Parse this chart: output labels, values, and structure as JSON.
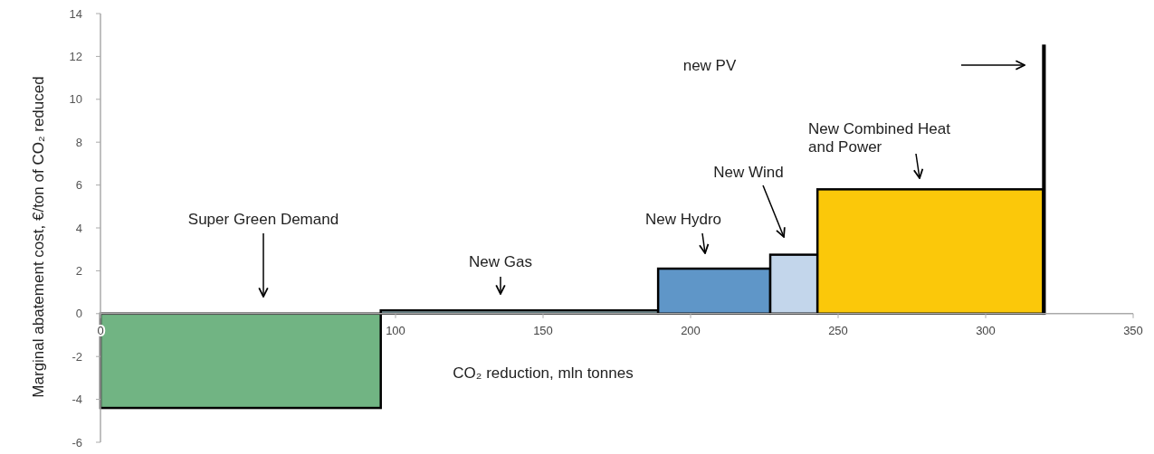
{
  "chart_data": {
    "type": "histogram",
    "xlabel": "CO₂ reduction, mln tonnes",
    "ylabel": "Marginal abatement cost, €/ton of CO₂ reduced",
    "bins": [
      0,
      95,
      189,
      227,
      243,
      319.5,
      320
    ],
    "values": [
      -4.4,
      0.15,
      2.1,
      2.75,
      5.8,
      12.5
    ],
    "colors": [
      "#71b483",
      "#b7e0ea",
      "#5f96c8",
      "#c3d6eb",
      "#fbc80a",
      "#000000"
    ],
    "xlim": [
      0,
      350
    ],
    "xticks": [
      0,
      100,
      150,
      200,
      250,
      300,
      350
    ],
    "ylim": [
      -6,
      14
    ],
    "yticks": [
      -6,
      -4,
      -2,
      0,
      2,
      4,
      6,
      8,
      10,
      12,
      14
    ],
    "annotations": [
      "Super Green Demand",
      "New Gas",
      "New Hydro",
      "New Wind",
      "New Combined Heat and Power",
      "new PV"
    ]
  }
}
